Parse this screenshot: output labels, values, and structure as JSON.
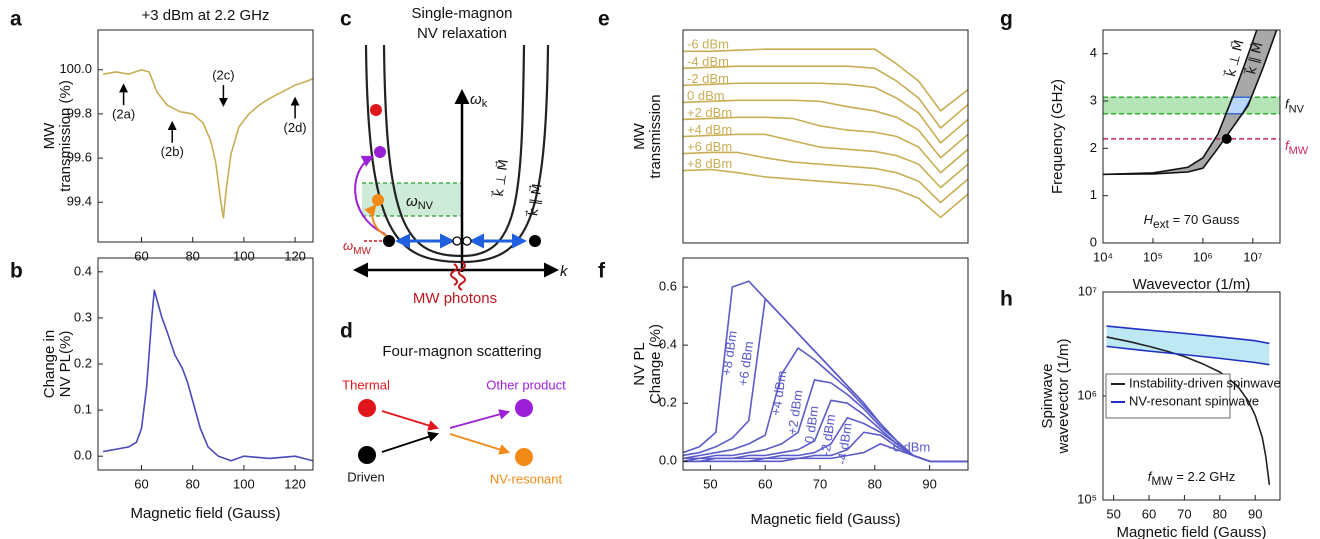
{
  "chart_data": [
    {
      "panel": "a",
      "type": "line",
      "title": "+3 dBm at 2.2 GHz",
      "ylabel": [
        "MW",
        "transmission (%)"
      ],
      "xlim": [
        43,
        127
      ],
      "xticks": [
        60,
        80,
        100,
        120
      ],
      "ylim": [
        99.22,
        100.18
      ],
      "yticks": [
        99.4,
        99.6,
        99.8,
        {
          "value": 100,
          "label": "100.0"
        }
      ],
      "x": [
        45,
        50,
        55,
        60,
        63,
        66,
        70,
        75,
        80,
        84,
        87,
        89,
        91,
        92,
        93,
        95,
        98,
        102,
        106,
        110,
        115,
        120,
        125,
        127
      ],
      "series": [
        {
          "color": "#c9ad55",
          "values": [
            99.98,
            99.99,
            99.98,
            100.0,
            99.99,
            99.9,
            99.84,
            99.81,
            99.8,
            99.76,
            99.68,
            99.58,
            99.4,
            99.33,
            99.45,
            99.62,
            99.74,
            99.8,
            99.84,
            99.87,
            99.9,
            99.93,
            99.95,
            99.96
          ]
        }
      ],
      "annotations": [
        {
          "text": "(2a)",
          "x": 53,
          "y": 99.93
        },
        {
          "text": "(2b)",
          "x": 72,
          "y": 99.76
        },
        {
          "text": "(2c)",
          "x": 92,
          "y": 99.84
        },
        {
          "text": "(2d)",
          "x": 120,
          "y": 99.87
        }
      ]
    },
    {
      "panel": "b",
      "type": "line",
      "xlabel": "Magnetic field (Gauss)",
      "ylabel": [
        "Change in",
        "NV PL(%)"
      ],
      "xlim": [
        43,
        127
      ],
      "xticks": [
        60,
        80,
        100,
        120
      ],
      "ylim": [
        -0.03,
        0.43
      ],
      "yticks": [
        {
          "value": 0,
          "label": "0.0"
        },
        0.1,
        0.2,
        0.3,
        0.4
      ],
      "x": [
        45,
        50,
        55,
        58,
        60,
        62,
        64,
        65,
        66,
        68,
        70,
        73,
        76,
        78,
        80,
        83,
        86,
        90,
        95,
        100,
        110,
        120,
        127
      ],
      "series": [
        {
          "color": "#4a4aba",
          "values": [
            0.01,
            0.015,
            0.02,
            0.03,
            0.06,
            0.15,
            0.3,
            0.36,
            0.34,
            0.3,
            0.27,
            0.22,
            0.19,
            0.16,
            0.12,
            0.06,
            0.02,
            0.0,
            -0.01,
            0.0,
            -0.005,
            0.0,
            -0.01
          ]
        }
      ]
    },
    {
      "panel": "e",
      "type": "line",
      "ylabel": [
        "MW",
        "transmission"
      ],
      "xlim": [
        45,
        97
      ],
      "ylim": [
        0,
        10
      ],
      "x": [
        45,
        50,
        55,
        60,
        65,
        70,
        75,
        80,
        84,
        88,
        92,
        97
      ],
      "series": [
        {
          "name": "-6 dBm",
          "color": "#c9ad55",
          "values": [
            9.0,
            9.0,
            9.05,
            9.1,
            9.1,
            9.1,
            9.1,
            9.1,
            8.4,
            7.6,
            6.2,
            7.2
          ]
        },
        {
          "name": "-4 dBm",
          "color": "#c9ad55",
          "values": [
            8.2,
            8.25,
            8.3,
            8.3,
            8.3,
            8.3,
            8.3,
            8.2,
            7.6,
            6.8,
            5.4,
            6.5
          ]
        },
        {
          "name": "-2 dBm",
          "color": "#c9ad55",
          "values": [
            7.4,
            7.45,
            7.5,
            7.5,
            7.5,
            7.5,
            7.45,
            7.3,
            6.8,
            6.1,
            4.7,
            5.8
          ]
        },
        {
          "name": "0 dBm",
          "color": "#c9ad55",
          "values": [
            6.6,
            6.65,
            6.7,
            6.7,
            6.7,
            6.65,
            6.4,
            6.2,
            5.9,
            5.3,
            4.0,
            5.1
          ]
        },
        {
          "name": "+2 dBm",
          "color": "#c9ad55",
          "values": [
            5.8,
            5.85,
            5.9,
            5.9,
            5.85,
            5.5,
            5.3,
            5.2,
            5.0,
            4.5,
            3.3,
            4.4
          ]
        },
        {
          "name": "+4 dBm",
          "color": "#c9ad55",
          "values": [
            5.0,
            5.05,
            5.1,
            5.1,
            4.8,
            4.5,
            4.4,
            4.3,
            4.1,
            3.7,
            2.6,
            3.7
          ]
        },
        {
          "name": "+6 dBm",
          "color": "#c9ad55",
          "values": [
            4.2,
            4.25,
            4.25,
            4.0,
            3.8,
            3.7,
            3.6,
            3.5,
            3.3,
            2.9,
            1.9,
            3.0
          ]
        },
        {
          "name": "+8 dBm",
          "color": "#c9ad55",
          "values": [
            3.4,
            3.45,
            3.3,
            3.1,
            3.0,
            2.9,
            2.8,
            2.7,
            2.5,
            2.1,
            1.2,
            2.3
          ]
        }
      ]
    },
    {
      "panel": "f",
      "type": "line",
      "xlabel": "Magnetic field (Gauss)",
      "ylabel": [
        "NV PL",
        "Change (%)"
      ],
      "xlim": [
        45,
        97
      ],
      "xticks": [
        50,
        60,
        70,
        80,
        90
      ],
      "ylim": [
        -0.03,
        0.7
      ],
      "yticks": [
        {
          "value": 0,
          "label": "0.0"
        },
        0.2,
        0.4,
        0.6
      ],
      "x": [
        45,
        48,
        51,
        54,
        57,
        60,
        63,
        66,
        69,
        72,
        75,
        78,
        81,
        84,
        87,
        90,
        93,
        97
      ],
      "series": [
        {
          "name": "-6 dBm",
          "color": "#5b5bc9",
          "values": [
            0,
            0,
            0,
            0,
            0,
            0,
            0,
            0.01,
            0.01,
            0.01,
            0.02,
            0.03,
            0.06,
            0.04,
            0.02,
            0,
            0,
            0
          ]
        },
        {
          "name": "-4 dBm",
          "color": "#5b5bc9",
          "values": [
            0,
            0,
            0,
            0,
            0,
            0.01,
            0.01,
            0.01,
            0.02,
            0.02,
            0.04,
            0.1,
            0.09,
            0.05,
            0.02,
            0,
            0,
            0
          ]
        },
        {
          "name": "-2 dBm",
          "color": "#5b5bc9",
          "values": [
            0,
            0,
            0.01,
            0.01,
            0.01,
            0.01,
            0.02,
            0.02,
            0.03,
            0.06,
            0.15,
            0.13,
            0.1,
            0.06,
            0.02,
            0,
            0,
            0
          ]
        },
        {
          "name": "0 dBm",
          "color": "#5b5bc9",
          "values": [
            0,
            0.01,
            0.01,
            0.01,
            0.02,
            0.02,
            0.03,
            0.04,
            0.07,
            0.21,
            0.2,
            0.16,
            0.11,
            0.06,
            0.02,
            0,
            0,
            0
          ]
        },
        {
          "name": "+2 dBm",
          "color": "#5b5bc9",
          "values": [
            0.01,
            0.01,
            0.02,
            0.02,
            0.03,
            0.04,
            0.06,
            0.1,
            0.28,
            0.27,
            0.23,
            0.18,
            0.12,
            0.07,
            0.02,
            0,
            0,
            0
          ]
        },
        {
          "name": "+4 dBm",
          "color": "#5b5bc9",
          "values": [
            0.01,
            0.02,
            0.03,
            0.04,
            0.06,
            0.09,
            0.3,
            0.39,
            0.35,
            0.3,
            0.25,
            0.19,
            0.13,
            0.07,
            0.02,
            0,
            0,
            0
          ]
        },
        {
          "name": "+6 dBm",
          "color": "#5b5bc9",
          "values": [
            0.02,
            0.03,
            0.05,
            0.08,
            0.14,
            0.56,
            0.5,
            0.44,
            0.38,
            0.32,
            0.26,
            0.2,
            0.13,
            0.07,
            0.02,
            0,
            0,
            0
          ]
        },
        {
          "name": "+8 dBm",
          "color": "#5b5bc9",
          "values": [
            0.03,
            0.05,
            0.1,
            0.6,
            0.62,
            0.56,
            0.5,
            0.44,
            0.38,
            0.32,
            0.26,
            0.2,
            0.13,
            0.07,
            0.02,
            0,
            0,
            0
          ]
        }
      ]
    },
    {
      "panel": "g",
      "type": "line",
      "xlabel": "Wavevector (1/m)",
      "ylabel": [
        "Frequency (GHz)"
      ],
      "xscale": "log",
      "xlim": [
        10000,
        35000000
      ],
      "xticks": [
        {
          "value": 10000,
          "label": "10⁴"
        },
        {
          "value": 100000,
          "label": "10⁵"
        },
        {
          "value": 1000000,
          "label": "10⁶"
        },
        {
          "value": 10000000,
          "label": "10⁷"
        }
      ],
      "ylim": [
        0,
        4.5
      ],
      "yticks": [
        0,
        1,
        2,
        3,
        4
      ],
      "series": [
        {
          "name": "k⃗ ⊥ M⃗",
          "color": "#111111",
          "x": [
            10000,
            100000,
            500000,
            1000000,
            2000000,
            4000000,
            7000000,
            12000000
          ],
          "values": [
            1.45,
            1.48,
            1.6,
            1.8,
            2.3,
            3.1,
            3.8,
            4.5
          ]
        },
        {
          "name": "k⃗ ∥ M⃗",
          "color": "#111111",
          "x": [
            10000,
            100000,
            500000,
            1000000,
            2000000,
            4000000,
            8000000,
            16000000,
            30000000
          ],
          "values": [
            1.45,
            1.46,
            1.5,
            1.58,
            2.0,
            2.45,
            2.9,
            3.7,
            4.5
          ]
        }
      ],
      "fill_between": {
        "series": [
          0,
          1
        ],
        "color": "#a8a8a8"
      },
      "bands": [
        {
          "label": {
            "symbol": "f",
            "subscript": "NV"
          },
          "range": [
            2.73,
            3.08
          ],
          "color": "#2fae2f"
        }
      ],
      "hlines": [
        {
          "label": {
            "symbol": "f",
            "subscript": "MW"
          },
          "value": 2.2,
          "color": "#c8285a"
        }
      ],
      "points": [
        {
          "x": 3000000,
          "value": 2.2
        }
      ],
      "annotations": [
        {
          "label": {
            "symbol": "H",
            "subscript": "ext",
            "rest": " = 70 Gauss"
          }
        }
      ]
    },
    {
      "panel": "h",
      "type": "line",
      "xlabel": "Magnetic field (Gauss)",
      "ylabel": [
        "Spinwave",
        "wavevector (1/m)"
      ],
      "yscale": "log",
      "xlim": [
        47,
        97
      ],
      "xticks": [
        50,
        60,
        70,
        80,
        90
      ],
      "ylim": [
        100000,
        10000000
      ],
      "yticks": [
        {
          "value": 100000,
          "label": "10⁵"
        },
        {
          "value": 1000000,
          "label": "10⁶"
        },
        {
          "value": 10000000,
          "label": "10⁷"
        }
      ],
      "legend": "center left",
      "series": [
        {
          "name": "Instability-driven spinwave",
          "color": "#222222",
          "x": [
            48,
            55,
            60,
            65,
            70,
            75,
            80,
            85,
            88,
            90,
            92,
            93,
            94
          ],
          "values": [
            3700000,
            3300000,
            3000000,
            2700000,
            2400000,
            2050000,
            1700000,
            1250000,
            900000,
            650000,
            400000,
            260000,
            140000
          ]
        },
        {
          "name": "NV-resonant spinwave",
          "color": "#2030c0",
          "x": [
            48,
            60,
            70,
            80,
            90,
            94
          ],
          "values": [
            4700000,
            4300000,
            4000000,
            3700000,
            3400000,
            3200000
          ]
        },
        {
          "color": "#2030c0",
          "x": [
            48,
            60,
            70,
            80,
            90,
            94
          ],
          "values": [
            3000000,
            2700000,
            2500000,
            2300000,
            2100000,
            2000000
          ]
        }
      ],
      "fill_between": {
        "series": [
          1,
          2
        ],
        "color": "#bfe8f5"
      },
      "annotations": [
        {
          "label": {
            "symbol": "f",
            "subscript": "MW",
            "rest": " = 2.2 GHz"
          }
        }
      ]
    }
  ],
  "schematic_c": {
    "panel": "c",
    "title": [
      "Single-magnon",
      "NV relaxation"
    ],
    "axis_y": {
      "symbol": "ω",
      "subscript": "k"
    },
    "axis_x": "k",
    "nv": {
      "symbol": "ω",
      "subscript": "NV"
    },
    "mw": {
      "symbol": "ω",
      "subscript": "MW"
    },
    "photons": "MW photons",
    "branch_perp": "k⃗ ⊥ M⃗",
    "branch_par": "k⃗ ∥ M⃗"
  },
  "schematic_d": {
    "panel": "d",
    "title": "Four-magnon scattering",
    "thermal": "Thermal",
    "driven": "Driven",
    "other": "Other product",
    "nv_resonant": "NV-resonant"
  }
}
